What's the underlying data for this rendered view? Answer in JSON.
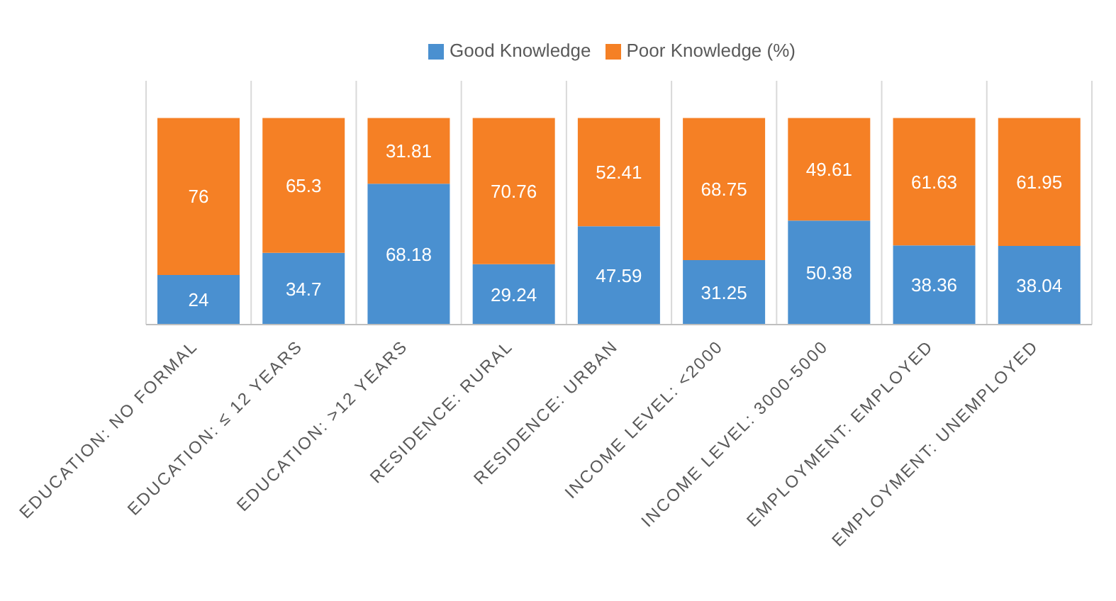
{
  "chart_data": {
    "type": "bar",
    "stacked": true,
    "data_labels": true,
    "grid": "x",
    "legend": "top",
    "categories": [
      "EDUCATION: NO FORMAL",
      "EDUCATION: ≤ 12 YEARS",
      "EDUCATION: >12 YEARS",
      "RESIDENCE: RURAL",
      "RESIDENCE: URBAN",
      "INCOME LEVEL: <2000",
      "INCOME LEVEL: 3000-5000",
      "EMPLOYMENT: EMPLOYED",
      "EMPLOYMENT: UNEMPLOYED"
    ],
    "series": [
      {
        "name": "Good Knowledge",
        "color": "#4a90d0",
        "values": [
          24,
          34.7,
          68.18,
          29.24,
          47.59,
          31.25,
          50.38,
          38.36,
          38.04
        ]
      },
      {
        "name": "Poor Knowledge (%)",
        "color": "#f58025",
        "values": [
          76,
          65.3,
          31.81,
          70.76,
          52.41,
          68.75,
          49.61,
          61.63,
          61.95
        ]
      }
    ]
  }
}
